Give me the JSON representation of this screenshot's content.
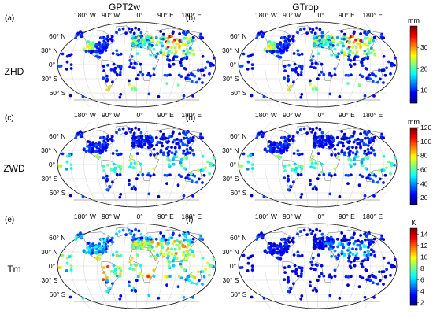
{
  "chart_data": {
    "type": "scatter",
    "columns": [
      "GPT2w",
      "GTrop"
    ],
    "rows": [
      "ZHD",
      "ZWD",
      "Tm"
    ],
    "panels": [
      {
        "id": "a",
        "label": "(a)",
        "model": "GPT2w",
        "variable": "ZHD"
      },
      {
        "id": "b",
        "label": "(b)",
        "model": "GTrop",
        "variable": "ZHD"
      },
      {
        "id": "c",
        "label": "(c)",
        "model": "GPT2w",
        "variable": "ZWD"
      },
      {
        "id": "d",
        "label": "(d)",
        "model": "GTrop",
        "variable": "ZWD"
      },
      {
        "id": "e",
        "label": "(e)",
        "model": "GPT2w",
        "variable": "Tm"
      },
      {
        "id": "f",
        "label": "(f)",
        "model": "GTrop",
        "variable": "Tm"
      }
    ],
    "lon_ticks": [
      "180° W",
      "90° W",
      "0°",
      "90° E",
      "180° E"
    ],
    "lat_ticks": [
      "60° N",
      "30° N",
      "0°",
      "30° S",
      "60° S"
    ],
    "colorbars": [
      {
        "row": "ZHD",
        "unit": "mm",
        "ticks": [
          10,
          20,
          30
        ],
        "range": [
          4,
          40
        ]
      },
      {
        "row": "ZWD",
        "unit": "mm",
        "ticks": [
          20,
          40,
          60,
          80,
          100,
          120
        ],
        "range": [
          10,
          120
        ]
      },
      {
        "row": "Tm",
        "unit": "K",
        "ticks": [
          2,
          4,
          6,
          8,
          10,
          12,
          14
        ],
        "range": [
          1.5,
          15
        ]
      }
    ],
    "colormap": "jet"
  }
}
